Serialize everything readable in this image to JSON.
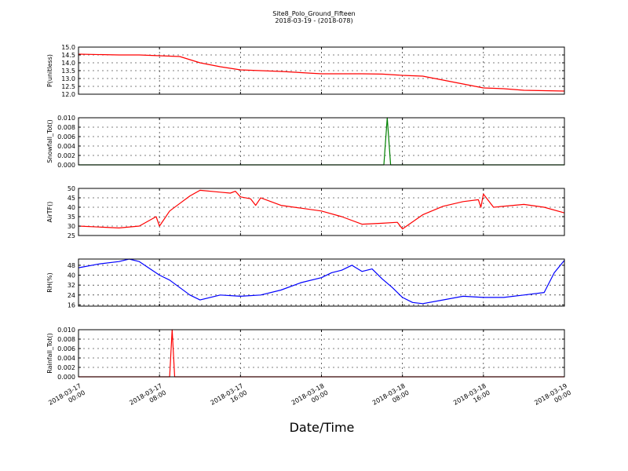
{
  "figure": {
    "title_line1": "Site8_Polo_Ground_Fifteen",
    "title_line2": "2018-03-19 - (2018-078)",
    "xlabel": "Date/Time"
  },
  "chart_data": [
    {
      "type": "line",
      "ylabel": "P(unitless)",
      "color": "#ff0000",
      "ylim": [
        12.0,
        15.0
      ],
      "yticks": [
        "12.0",
        "12.5",
        "13.0",
        "13.5",
        "14.0",
        "14.5",
        "15.0"
      ],
      "grid": true,
      "x": [
        "2018-03-17 00:00",
        "2018-03-17 04:00",
        "2018-03-17 06:00",
        "2018-03-17 08:00",
        "2018-03-17 10:00",
        "2018-03-17 12:00",
        "2018-03-17 14:00",
        "2018-03-17 16:00",
        "2018-03-17 20:00",
        "2018-03-18 00:00",
        "2018-03-18 04:00",
        "2018-03-18 06:00",
        "2018-03-18 08:00",
        "2018-03-18 10:00",
        "2018-03-18 12:00",
        "2018-03-18 14:00",
        "2018-03-18 16:00",
        "2018-03-18 18:00",
        "2018-03-18 20:00",
        "2018-03-19 00:00"
      ],
      "values": [
        14.55,
        14.5,
        14.5,
        14.45,
        14.4,
        14.0,
        13.75,
        13.55,
        13.45,
        13.3,
        13.3,
        13.28,
        13.2,
        13.15,
        12.9,
        12.65,
        12.4,
        12.35,
        12.25,
        12.2
      ]
    },
    {
      "type": "line",
      "ylabel": "Snowfall_Tot()",
      "color": "#008000",
      "ylim": [
        0.0,
        0.01
      ],
      "yticks": [
        "0.000",
        "0.002",
        "0.004",
        "0.006",
        "0.008",
        "0.010"
      ],
      "grid": true,
      "x": [
        "2018-03-17 00:00",
        "2018-03-18 06:10",
        "2018-03-18 06:30",
        "2018-03-18 06:50",
        "2018-03-19 00:00"
      ],
      "values": [
        0.0,
        0.0,
        0.01,
        0.0,
        0.0
      ]
    },
    {
      "type": "line",
      "ylabel": "AirTF()",
      "color": "#ff0000",
      "ylim": [
        25,
        50
      ],
      "yticks": [
        "25",
        "30",
        "35",
        "40",
        "45",
        "50"
      ],
      "grid": true,
      "x": [
        "2018-03-17 00:00",
        "2018-03-17 02:00",
        "2018-03-17 04:00",
        "2018-03-17 06:00",
        "2018-03-17 07:40",
        "2018-03-17 08:00",
        "2018-03-17 09:00",
        "2018-03-17 10:00",
        "2018-03-17 11:00",
        "2018-03-17 12:00",
        "2018-03-17 14:00",
        "2018-03-17 15:00",
        "2018-03-17 15:30",
        "2018-03-17 16:00",
        "2018-03-17 17:00",
        "2018-03-17 17:30",
        "2018-03-17 18:00",
        "2018-03-17 20:00",
        "2018-03-17 22:00",
        "2018-03-18 00:00",
        "2018-03-18 02:00",
        "2018-03-18 04:00",
        "2018-03-18 06:00",
        "2018-03-18 07:30",
        "2018-03-18 08:00",
        "2018-03-18 10:00",
        "2018-03-18 12:00",
        "2018-03-18 14:00",
        "2018-03-18 15:30",
        "2018-03-18 15:45",
        "2018-03-18 16:00",
        "2018-03-18 17:00",
        "2018-03-18 20:00",
        "2018-03-18 22:00",
        "2018-03-19 00:00"
      ],
      "values": [
        30.0,
        29.5,
        29.0,
        30.0,
        35.0,
        30.0,
        38.0,
        42.0,
        46.0,
        49.0,
        48.0,
        47.5,
        48.5,
        45.5,
        44.5,
        41.0,
        45.0,
        41.0,
        39.5,
        38.0,
        35.0,
        31.0,
        31.5,
        32.0,
        28.5,
        36.0,
        40.5,
        43.0,
        44.0,
        40.0,
        47.0,
        40.0,
        41.5,
        40.0,
        37.0
      ]
    },
    {
      "type": "line",
      "ylabel": "RH(%)",
      "color": "#0000ff",
      "ylim": [
        15,
        53
      ],
      "yticks": [
        "16",
        "24",
        "32",
        "40",
        "48"
      ],
      "grid": true,
      "x": [
        "2018-03-17 00:00",
        "2018-03-17 02:00",
        "2018-03-17 04:00",
        "2018-03-17 05:00",
        "2018-03-17 06:00",
        "2018-03-17 08:00",
        "2018-03-17 09:00",
        "2018-03-17 10:00",
        "2018-03-17 11:00",
        "2018-03-17 12:00",
        "2018-03-17 14:00",
        "2018-03-17 16:00",
        "2018-03-17 18:00",
        "2018-03-17 20:00",
        "2018-03-17 22:00",
        "2018-03-18 00:00",
        "2018-03-18 01:00",
        "2018-03-18 02:00",
        "2018-03-18 03:00",
        "2018-03-18 04:00",
        "2018-03-18 05:00",
        "2018-03-18 06:00",
        "2018-03-18 07:00",
        "2018-03-18 08:00",
        "2018-03-18 09:00",
        "2018-03-18 10:00",
        "2018-03-18 12:00",
        "2018-03-18 14:00",
        "2018-03-18 16:00",
        "2018-03-18 18:00",
        "2018-03-18 20:00",
        "2018-03-18 22:00",
        "2018-03-18 23:00",
        "2018-03-19 00:00"
      ],
      "values": [
        46,
        49,
        51,
        53,
        51,
        40,
        36,
        30,
        24,
        20,
        24,
        23,
        24,
        28,
        34,
        38,
        42,
        44,
        48,
        43,
        45,
        37,
        30,
        22,
        18,
        17,
        20,
        23,
        22,
        22,
        24,
        26,
        42,
        52
      ]
    },
    {
      "type": "line",
      "ylabel": "Rainfall_Tot()",
      "color": "#ff0000",
      "ylim": [
        0.0,
        0.01
      ],
      "yticks": [
        "0.000",
        "0.002",
        "0.004",
        "0.006",
        "0.008",
        "0.010"
      ],
      "grid": true,
      "x": [
        "2018-03-17 00:00",
        "2018-03-17 09:00",
        "2018-03-17 09:15",
        "2018-03-17 09:30",
        "2018-03-19 00:00"
      ],
      "values": [
        0.0,
        0.0,
        0.01,
        0.0,
        0.0
      ]
    }
  ],
  "x_axis": {
    "start": "2018-03-17 00:00",
    "end": "2018-03-19 00:00",
    "ticks": [
      {
        "at": "2018-03-17 00:00",
        "line1": "2018-03-17",
        "line2": "00:00"
      },
      {
        "at": "2018-03-17 08:00",
        "line1": "2018-03-17",
        "line2": "08:00"
      },
      {
        "at": "2018-03-17 16:00",
        "line1": "2018-03-17",
        "line2": "16:00"
      },
      {
        "at": "2018-03-18 00:00",
        "line1": "2018-03-18",
        "line2": "00:00"
      },
      {
        "at": "2018-03-18 08:00",
        "line1": "2018-03-18",
        "line2": "08:00"
      },
      {
        "at": "2018-03-18 16:00",
        "line1": "2018-03-18",
        "line2": "16:00"
      },
      {
        "at": "2018-03-19 00:00",
        "line1": "2018-03-19",
        "line2": "00:00"
      }
    ]
  }
}
